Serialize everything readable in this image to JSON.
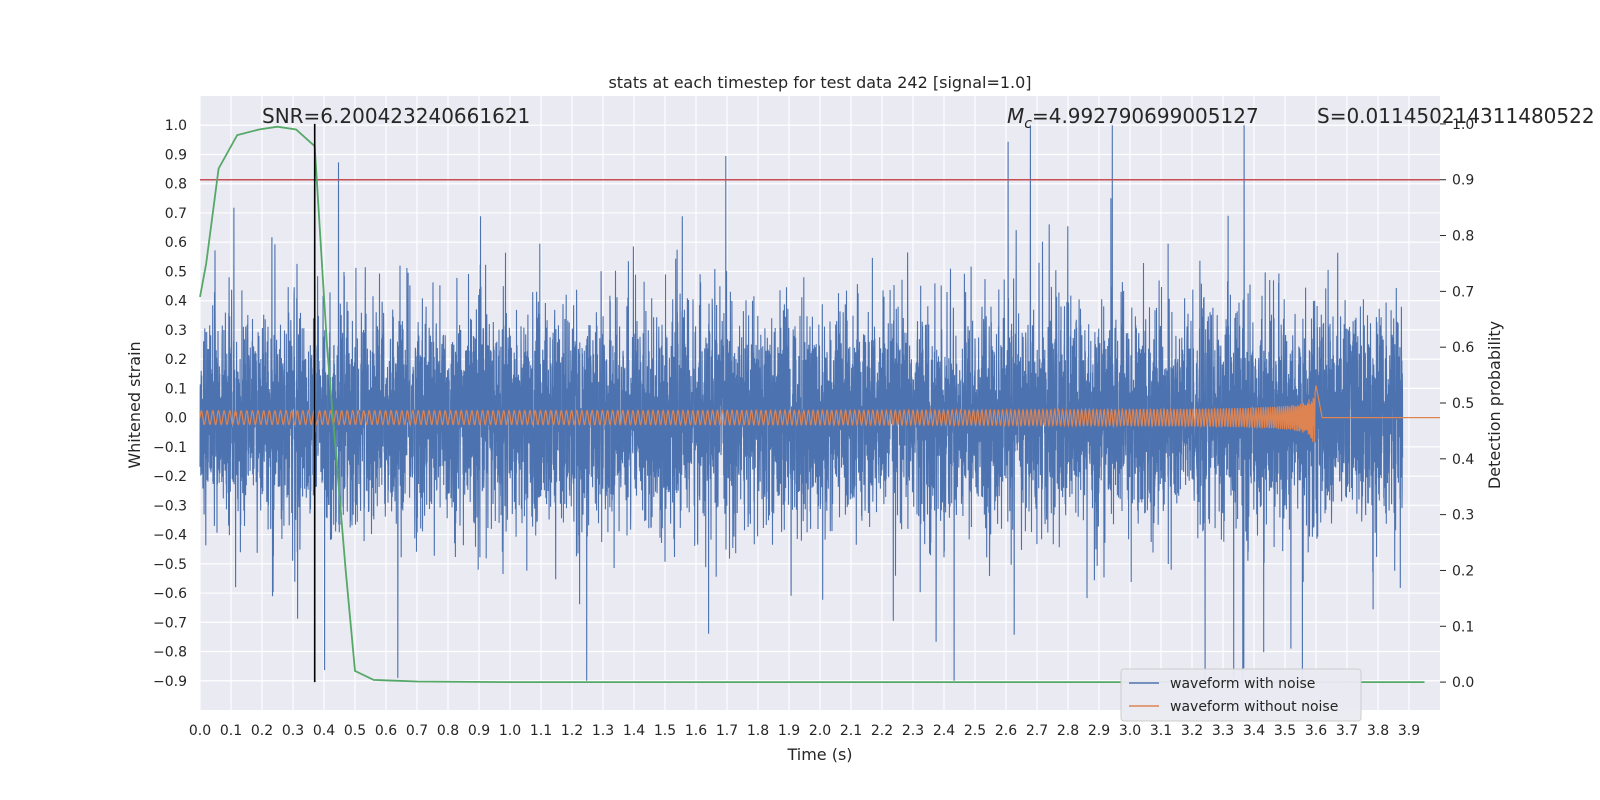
{
  "chart_data": {
    "type": "line",
    "title": "stats at each timestep for test data 242 [signal=1.0]",
    "xlabel": "Time (s)",
    "ylabel": "Whitened strain",
    "y2label": "Detection probability",
    "xlim": [
      0.0,
      4.0
    ],
    "ylim": [
      -1.0,
      1.1
    ],
    "y2lim": [
      -0.05,
      1.05
    ],
    "xticks": [
      "0.0",
      "0.1",
      "0.2",
      "0.3",
      "0.4",
      "0.5",
      "0.6",
      "0.7",
      "0.8",
      "0.9",
      "1.0",
      "1.1",
      "1.2",
      "1.3",
      "1.4",
      "1.5",
      "1.6",
      "1.7",
      "1.8",
      "1.9",
      "2.0",
      "2.1",
      "2.2",
      "2.3",
      "2.4",
      "2.5",
      "2.6",
      "2.7",
      "2.8",
      "2.9",
      "3.0",
      "3.1",
      "3.2",
      "3.3",
      "3.4",
      "3.5",
      "3.6",
      "3.7",
      "3.8",
      "3.9"
    ],
    "yticks": [
      "1.0",
      "0.9",
      "0.8",
      "0.7",
      "0.6",
      "0.5",
      "0.4",
      "0.3",
      "0.2",
      "0.1",
      "0.0",
      "−0.1",
      "−0.2",
      "−0.3",
      "−0.4",
      "−0.5",
      "−0.6",
      "−0.7",
      "−0.8",
      "−0.9"
    ],
    "y2ticks": [
      "1.0",
      "0.9",
      "0.8",
      "0.7",
      "0.6",
      "0.5",
      "0.4",
      "0.3",
      "0.2",
      "0.1",
      "0.0"
    ],
    "grid": true,
    "legend_position": "lower-right",
    "series": [
      {
        "name": "waveform with noise",
        "axis": "left",
        "color": "#4c72b0",
        "sample_rate_hz": 2048,
        "amplitude_envelope": [
          -0.9,
          1.0
        ],
        "values": []
      },
      {
        "name": "waveform without noise",
        "axis": "left",
        "color": "#dd8452",
        "chirp_end_time": 3.6,
        "amplitude_range": [
          0.02,
          0.15
        ],
        "values": []
      },
      {
        "axis": "right",
        "color": "#55a868",
        "x": [
          0.0,
          0.02,
          0.06,
          0.12,
          0.19,
          0.25,
          0.31,
          0.37,
          0.41,
          0.47,
          0.5,
          0.56,
          0.7,
          1.0,
          2.0,
          3.0,
          3.95
        ],
        "values": [
          0.69,
          0.75,
          0.92,
          0.98,
          0.99,
          0.995,
          0.99,
          0.96,
          0.6,
          0.2,
          0.02,
          0.004,
          0.001,
          0.0,
          0.0,
          0.0,
          0.0
        ]
      }
    ],
    "hlines": [
      {
        "axis": "right",
        "value": 0.9,
        "color": "#c44e52"
      }
    ],
    "vlines": [
      {
        "x": 0.37,
        "color": "#000000"
      }
    ],
    "annotations": {
      "snr": "SNR=6.200423240661621",
      "mc_label": "M",
      "mc_sub": "c",
      "mc_value": "=4.992790699005127",
      "s": "S=0.011450214311480522"
    }
  }
}
